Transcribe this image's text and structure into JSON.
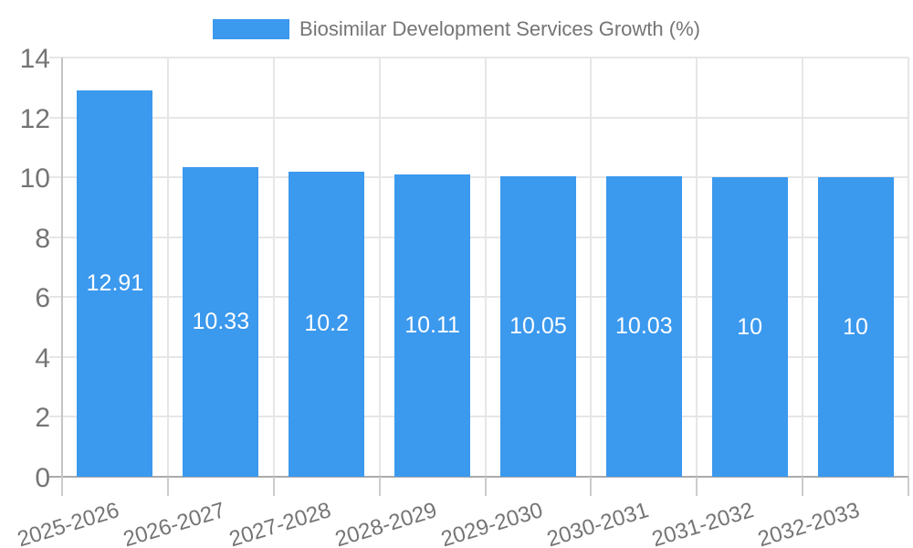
{
  "chart_data": {
    "type": "bar",
    "title": "Biosimilar Development Services Growth (%)",
    "legend_entries": [
      "Biosimilar Development Services Growth (%)"
    ],
    "legend_position": "top",
    "categories": [
      "2025-2026",
      "2026-2027",
      "2027-2028",
      "2028-2029",
      "2029-2030",
      "2030-2031",
      "2031-2032",
      "2032-2033"
    ],
    "values": [
      12.91,
      10.33,
      10.2,
      10.11,
      10.05,
      10.03,
      10,
      10
    ],
    "value_labels": [
      "12.91",
      "10.33",
      "10.2",
      "10.11",
      "10.05",
      "10.03",
      "10",
      "10"
    ],
    "xlabel": "",
    "ylabel": "",
    "ylim": [
      0,
      14
    ],
    "ytick_step": 2,
    "ytick_labels": [
      "0",
      "2",
      "4",
      "6",
      "8",
      "10",
      "12",
      "14"
    ],
    "grid": true,
    "colors": {
      "bar": "#3B99EE",
      "value_label": "#FFFFFF",
      "axis_text": "#757575",
      "gridline": "#E6E6E6",
      "baseline": "#ABABAB",
      "tick": "#CCCCCC",
      "legend_text": "#757575",
      "background": "#FFFFFF"
    }
  }
}
